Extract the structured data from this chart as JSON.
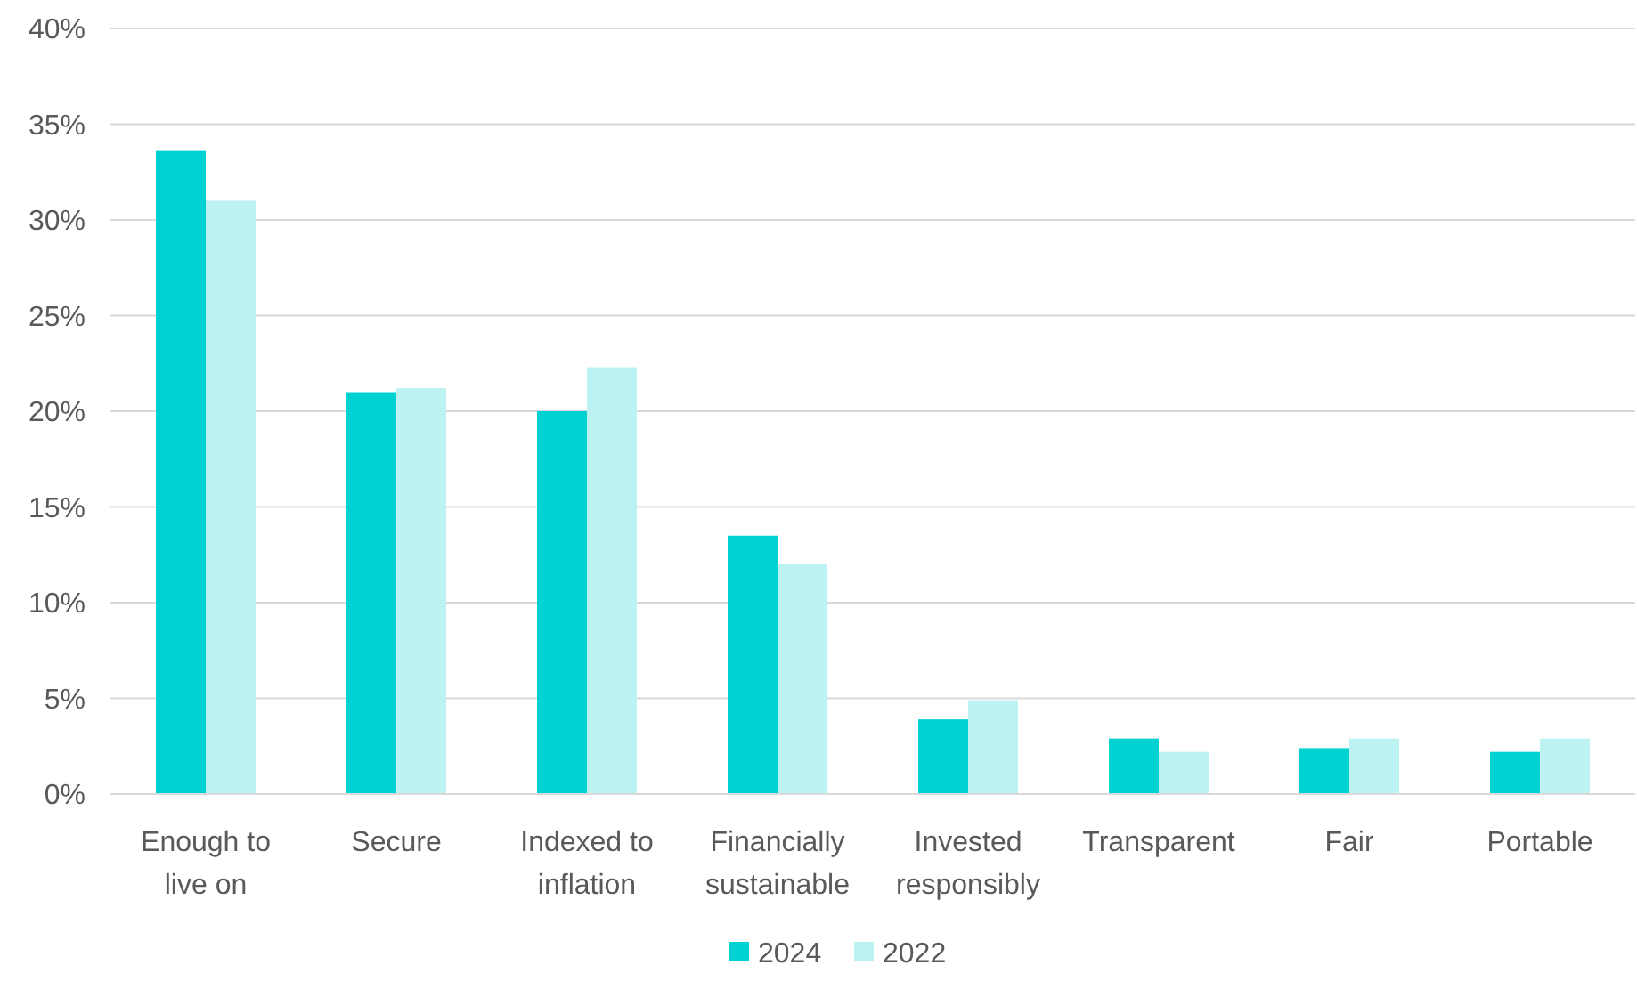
{
  "chart_data": {
    "type": "bar",
    "categories": [
      "Enough to live on",
      "Secure",
      "Indexed to inflation",
      "Financially sustainable",
      "Invested responsibly",
      "Transparent",
      "Fair",
      "Portable"
    ],
    "series": [
      {
        "name": "2024",
        "color": "#00d1d1",
        "values": [
          33.6,
          21.0,
          20.0,
          13.5,
          3.9,
          2.9,
          2.4,
          2.2
        ]
      },
      {
        "name": "2022",
        "color": "#bdf2f2",
        "values": [
          31.0,
          21.2,
          22.3,
          12.0,
          4.9,
          2.2,
          2.9,
          2.9
        ]
      }
    ],
    "ylim": [
      0,
      40
    ],
    "yticks": [
      {
        "value": 0,
        "label": "0%"
      },
      {
        "value": 5,
        "label": "5%"
      },
      {
        "value": 10,
        "label": "10%"
      },
      {
        "value": 15,
        "label": "15%"
      },
      {
        "value": 20,
        "label": "20%"
      },
      {
        "value": 25,
        "label": "25%"
      },
      {
        "value": 30,
        "label": "30%"
      },
      {
        "value": 35,
        "label": "35%"
      },
      {
        "value": 40,
        "label": "40%"
      }
    ],
    "grid": "y",
    "legend": "bottom"
  }
}
